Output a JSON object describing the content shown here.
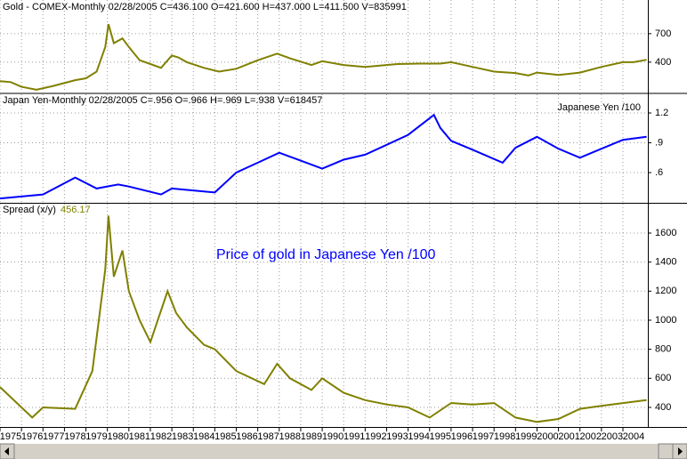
{
  "chart_data": [
    {
      "type": "line",
      "title": "Gold - COMEX-Monthly   02/28/2005  C=436.100  O=421.600  H=437.000  L=411.500  V=835991",
      "x": [
        1975.0,
        1975.5,
        1976.0,
        1976.7,
        1977.5,
        1978.5,
        1979.0,
        1979.5,
        1979.9,
        1980.05,
        1980.3,
        1980.7,
        1981.0,
        1981.5,
        1982.0,
        1982.5,
        1983.0,
        1983.3,
        1983.7,
        1984.5,
        1985.2,
        1986.0,
        1987.0,
        1987.9,
        1988.5,
        1989.5,
        1990.0,
        1991.0,
        1992.0,
        1993.5,
        1994.5,
        1995.5,
        1996.0,
        1997.0,
        1998.0,
        1999.0,
        1999.6,
        2000.0,
        2001.0,
        2002.0,
        2003.0,
        2004.0,
        2004.5,
        2005.1
      ],
      "values": [
        200,
        190,
        140,
        110,
        150,
        210,
        230,
        300,
        560,
        800,
        600,
        650,
        560,
        420,
        380,
        340,
        470,
        450,
        400,
        340,
        300,
        330,
        420,
        490,
        440,
        370,
        410,
        370,
        350,
        380,
        385,
        385,
        400,
        350,
        300,
        285,
        260,
        290,
        265,
        290,
        350,
        400,
        400,
        425
      ],
      "color": "#808000",
      "ylim": [
        80,
        1055
      ],
      "yticks": [
        400,
        700
      ]
    },
    {
      "type": "line",
      "title": "Japan Yen-Monthly   02/28/2005  C=.956  O=.966  H=.969  L=.938  V=618457",
      "series_label": "Japanese Yen /100",
      "x": [
        1975.0,
        1977.0,
        1978.5,
        1979.5,
        1980.5,
        1981.0,
        1982.5,
        1983.0,
        1984.5,
        1985.0,
        1986.0,
        1987.0,
        1988.0,
        1989.0,
        1990.0,
        1991.0,
        1992.0,
        1993.0,
        1994.0,
        1995.2,
        1995.5,
        1996.0,
        1997.0,
        1998.4,
        1999.0,
        2000.0,
        2001.0,
        2002.0,
        2003.0,
        2004.0,
        2005.1
      ],
      "values": [
        0.34,
        0.38,
        0.55,
        0.44,
        0.48,
        0.46,
        0.38,
        0.44,
        0.41,
        0.4,
        0.6,
        0.7,
        0.8,
        0.72,
        0.64,
        0.73,
        0.78,
        0.88,
        0.98,
        1.18,
        1.05,
        0.92,
        0.83,
        0.7,
        0.85,
        0.96,
        0.84,
        0.75,
        0.84,
        0.93,
        0.96
      ],
      "color": "#0000ff",
      "ylim": [
        0.296,
        1.388
      ],
      "yticks": [
        {
          "value": 1.2,
          "label": "1.2"
        },
        {
          "value": 0.9,
          "label": ".9"
        },
        {
          "value": 0.6,
          "label": ".6"
        }
      ]
    },
    {
      "type": "line",
      "title": "Spread (x/y)",
      "last_value": "456.17",
      "annotation": "Price of gold in Japanese Yen /100",
      "x": [
        1975.0,
        1976.5,
        1977.0,
        1978.5,
        1979.3,
        1979.9,
        1980.05,
        1980.3,
        1980.7,
        1981.0,
        1981.5,
        1982.0,
        1982.8,
        1983.2,
        1983.7,
        1984.5,
        1985.0,
        1986.0,
        1987.3,
        1987.9,
        1988.5,
        1989.5,
        1990.0,
        1991.0,
        1992.0,
        1993.0,
        1994.0,
        1995.0,
        1996.0,
        1997.0,
        1998.0,
        1999.0,
        2000.0,
        2001.0,
        2002.0,
        2003.0,
        2004.0,
        2005.1
      ],
      "values": [
        540,
        330,
        400,
        390,
        650,
        1350,
        1720,
        1300,
        1480,
        1200,
        1000,
        850,
        1200,
        1050,
        950,
        830,
        800,
        650,
        560,
        700,
        600,
        520,
        600,
        500,
        450,
        420,
        400,
        330,
        430,
        420,
        430,
        330,
        300,
        320,
        390,
        410,
        430,
        450
      ],
      "color": "#808000",
      "ylim": [
        265,
        1802
      ],
      "yticks": [
        400,
        600,
        800,
        1000,
        1200,
        1400,
        1600
      ],
      "xlim": [
        1975,
        2005.16
      ],
      "xticks": [
        1975,
        1976,
        1977,
        1978,
        1979,
        1980,
        1981,
        1982,
        1983,
        1984,
        1985,
        1986,
        1987,
        1988,
        1989,
        1990,
        1991,
        1992,
        1993,
        1994,
        1995,
        1996,
        1997,
        1998,
        1999,
        2000,
        2001,
        2002,
        2003,
        2004
      ]
    }
  ]
}
